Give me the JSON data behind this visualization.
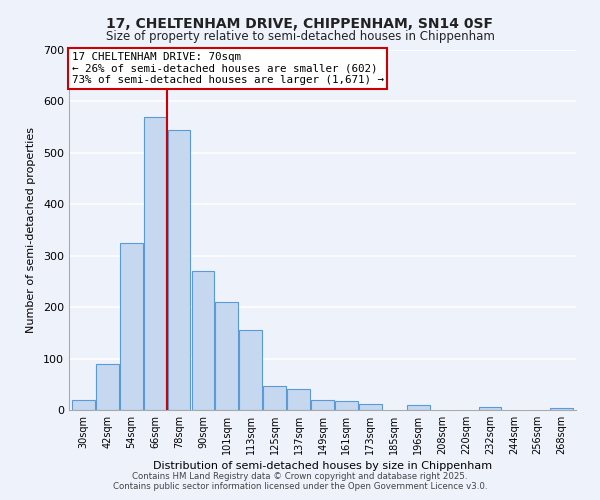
{
  "title1": "17, CHELTENHAM DRIVE, CHIPPENHAM, SN14 0SF",
  "title2": "Size of property relative to semi-detached houses in Chippenham",
  "xlabel": "Distribution of semi-detached houses by size in Chippenham",
  "ylabel": "Number of semi-detached properties",
  "bar_color": "#c5d8f0",
  "bar_edge_color": "#5b9bd5",
  "background_color": "#eef2fb",
  "grid_color": "#ffffff",
  "categories": [
    "30sqm",
    "42sqm",
    "54sqm",
    "66sqm",
    "78sqm",
    "90sqm",
    "101sqm",
    "113sqm",
    "125sqm",
    "137sqm",
    "149sqm",
    "161sqm",
    "173sqm",
    "185sqm",
    "196sqm",
    "208sqm",
    "220sqm",
    "232sqm",
    "244sqm",
    "256sqm",
    "268sqm"
  ],
  "values": [
    20,
    90,
    325,
    570,
    545,
    270,
    210,
    155,
    47,
    40,
    20,
    18,
    12,
    0,
    10,
    0,
    0,
    5,
    0,
    0,
    3
  ],
  "ylim": [
    0,
    700
  ],
  "yticks": [
    0,
    100,
    200,
    300,
    400,
    500,
    600,
    700
  ],
  "property_line_x": 3.5,
  "property_line_color": "#cc0000",
  "annotation_title": "17 CHELTENHAM DRIVE: 70sqm",
  "annotation_line1": "← 26% of semi-detached houses are smaller (602)",
  "annotation_line2": "73% of semi-detached houses are larger (1,671) →",
  "annotation_box_color": "#ffffff",
  "annotation_box_edge_color": "#cc0000",
  "footer1": "Contains HM Land Registry data © Crown copyright and database right 2025.",
  "footer2": "Contains public sector information licensed under the Open Government Licence v3.0."
}
